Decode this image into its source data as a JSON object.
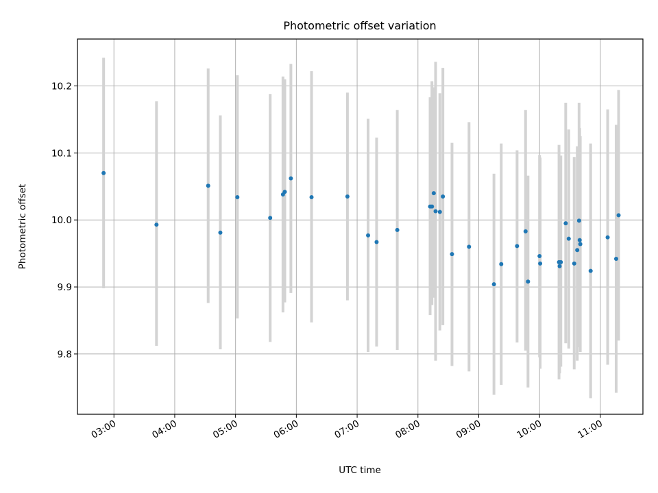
{
  "chart_data": {
    "type": "scatter",
    "title": "Photometric offset variation",
    "xlabel": "UTC time",
    "ylabel": "Photometric offset",
    "x_unit": "hours UTC",
    "xlim": [
      2.4,
      11.7
    ],
    "ylim": [
      9.71,
      10.27
    ],
    "x_ticks": [
      3,
      4,
      5,
      6,
      7,
      8,
      9,
      10,
      11
    ],
    "x_tick_labels": [
      "03:00",
      "04:00",
      "05:00",
      "06:00",
      "07:00",
      "08:00",
      "09:00",
      "10:00",
      "11:00"
    ],
    "y_ticks": [
      9.8,
      9.9,
      10.0,
      10.1,
      10.2
    ],
    "y_tick_labels": [
      "9.8",
      "9.9",
      "10.0",
      "10.1",
      "10.2"
    ],
    "grid": true,
    "legend": false,
    "colors": {
      "marker": "#1f77b4",
      "errorbar": "#d3d3d3",
      "grid": "#b0b0b0",
      "axes": "#000000"
    },
    "points": [
      {
        "x": 2.83,
        "y": 10.07,
        "lo": 9.898,
        "hi": 10.242
      },
      {
        "x": 3.7,
        "y": 9.993,
        "lo": 9.812,
        "hi": 10.177
      },
      {
        "x": 4.55,
        "y": 10.051,
        "lo": 9.876,
        "hi": 10.226
      },
      {
        "x": 4.75,
        "y": 9.981,
        "lo": 9.807,
        "hi": 10.156
      },
      {
        "x": 5.03,
        "y": 10.034,
        "lo": 9.853,
        "hi": 10.216
      },
      {
        "x": 5.57,
        "y": 10.003,
        "lo": 9.818,
        "hi": 10.188
      },
      {
        "x": 5.78,
        "y": 10.038,
        "lo": 9.862,
        "hi": 10.214
      },
      {
        "x": 5.81,
        "y": 10.042,
        "lo": 9.877,
        "hi": 10.21
      },
      {
        "x": 5.91,
        "y": 10.062,
        "lo": 9.891,
        "hi": 10.233
      },
      {
        "x": 6.25,
        "y": 10.034,
        "lo": 9.847,
        "hi": 10.222
      },
      {
        "x": 6.84,
        "y": 10.035,
        "lo": 9.88,
        "hi": 10.19
      },
      {
        "x": 7.18,
        "y": 9.977,
        "lo": 9.803,
        "hi": 10.151
      },
      {
        "x": 7.32,
        "y": 9.967,
        "lo": 9.811,
        "hi": 10.123
      },
      {
        "x": 7.66,
        "y": 9.985,
        "lo": 9.806,
        "hi": 10.164
      },
      {
        "x": 8.2,
        "y": 10.02,
        "lo": 9.858,
        "hi": 10.183
      },
      {
        "x": 8.23,
        "y": 10.02,
        "lo": 9.873,
        "hi": 10.207
      },
      {
        "x": 8.26,
        "y": 10.04,
        "lo": 9.884,
        "hi": 10.198
      },
      {
        "x": 8.29,
        "y": 10.013,
        "lo": 9.79,
        "hi": 10.236
      },
      {
        "x": 8.36,
        "y": 10.012,
        "lo": 9.835,
        "hi": 10.189
      },
      {
        "x": 8.41,
        "y": 10.035,
        "lo": 9.843,
        "hi": 10.227
      },
      {
        "x": 8.56,
        "y": 9.949,
        "lo": 9.782,
        "hi": 10.115
      },
      {
        "x": 8.84,
        "y": 9.96,
        "lo": 9.774,
        "hi": 10.146
      },
      {
        "x": 9.25,
        "y": 9.904,
        "lo": 9.739,
        "hi": 10.069
      },
      {
        "x": 9.37,
        "y": 9.934,
        "lo": 9.754,
        "hi": 10.114
      },
      {
        "x": 9.63,
        "y": 9.961,
        "lo": 9.817,
        "hi": 10.104
      },
      {
        "x": 9.77,
        "y": 9.983,
        "lo": 9.805,
        "hi": 10.164
      },
      {
        "x": 9.81,
        "y": 9.908,
        "lo": 9.75,
        "hi": 10.066
      },
      {
        "x": 10.0,
        "y": 9.946,
        "lo": 9.795,
        "hi": 10.097
      },
      {
        "x": 10.01,
        "y": 9.935,
        "lo": 9.778,
        "hi": 10.093
      },
      {
        "x": 10.32,
        "y": 9.937,
        "lo": 9.762,
        "hi": 10.112
      },
      {
        "x": 10.33,
        "y": 9.931,
        "lo": 9.771,
        "hi": 10.09
      },
      {
        "x": 10.35,
        "y": 9.937,
        "lo": 9.781,
        "hi": 10.096
      },
      {
        "x": 10.43,
        "y": 9.995,
        "lo": 9.816,
        "hi": 10.175
      },
      {
        "x": 10.48,
        "y": 9.972,
        "lo": 9.808,
        "hi": 10.135
      },
      {
        "x": 10.57,
        "y": 9.935,
        "lo": 9.777,
        "hi": 10.094
      },
      {
        "x": 10.62,
        "y": 9.955,
        "lo": 9.79,
        "hi": 10.11
      },
      {
        "x": 10.65,
        "y": 9.999,
        "lo": 9.823,
        "hi": 10.175
      },
      {
        "x": 10.66,
        "y": 9.97,
        "lo": 9.81,
        "hi": 10.137
      },
      {
        "x": 10.67,
        "y": 9.964,
        "lo": 9.803,
        "hi": 10.125
      },
      {
        "x": 10.84,
        "y": 9.924,
        "lo": 9.734,
        "hi": 10.114
      },
      {
        "x": 11.12,
        "y": 9.974,
        "lo": 9.784,
        "hi": 10.165
      },
      {
        "x": 11.26,
        "y": 9.942,
        "lo": 9.742,
        "hi": 10.142
      },
      {
        "x": 11.3,
        "y": 10.007,
        "lo": 9.82,
        "hi": 10.194
      }
    ]
  }
}
